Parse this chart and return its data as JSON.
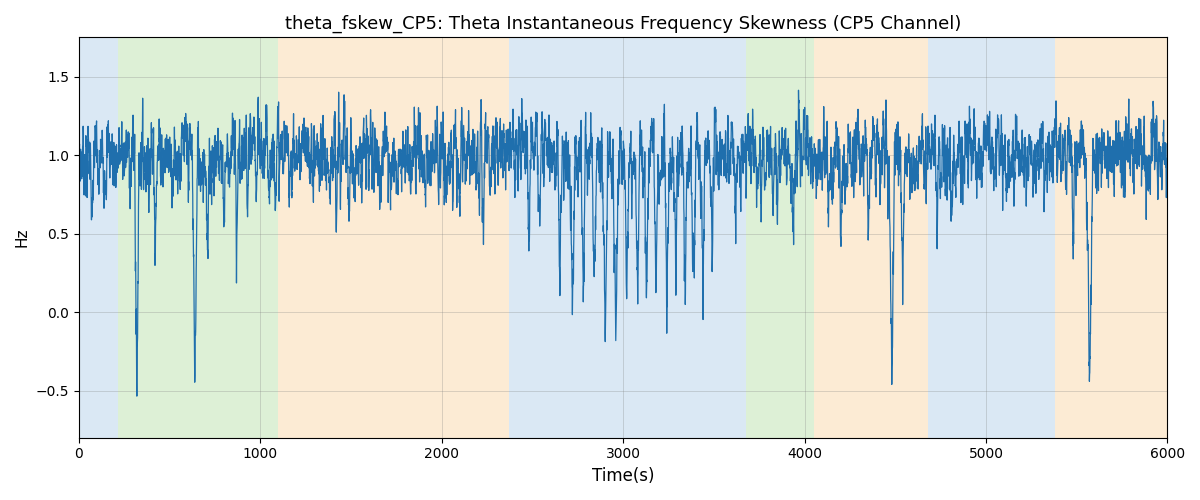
{
  "title": "theta_fskew_CP5: Theta Instantaneous Frequency Skewness (CP5 Channel)",
  "xlabel": "Time(s)",
  "ylabel": "Hz",
  "xlim": [
    0,
    6000
  ],
  "ylim": [
    -0.8,
    1.75
  ],
  "line_color": "#1f6fad",
  "line_width": 0.9,
  "yticks": [
    -0.5,
    0.0,
    0.5,
    1.0,
    1.5
  ],
  "xticks": [
    0,
    1000,
    2000,
    3000,
    4000,
    5000,
    6000
  ],
  "bands": [
    {
      "xmin": 0,
      "xmax": 215,
      "color": "#aecde8",
      "alpha": 0.45
    },
    {
      "xmin": 215,
      "xmax": 1100,
      "color": "#b5dea4",
      "alpha": 0.45
    },
    {
      "xmin": 1100,
      "xmax": 2370,
      "color": "#fad3a0",
      "alpha": 0.45
    },
    {
      "xmin": 2370,
      "xmax": 3530,
      "color": "#aecde8",
      "alpha": 0.45
    },
    {
      "xmin": 3530,
      "xmax": 3680,
      "color": "#aecde8",
      "alpha": 0.45
    },
    {
      "xmin": 3680,
      "xmax": 4050,
      "color": "#b5dea4",
      "alpha": 0.45
    },
    {
      "xmin": 4050,
      "xmax": 4680,
      "color": "#fad3a0",
      "alpha": 0.45
    },
    {
      "xmin": 4680,
      "xmax": 5380,
      "color": "#aecde8",
      "alpha": 0.45
    },
    {
      "xmin": 5380,
      "xmax": 6000,
      "color": "#fad3a0",
      "alpha": 0.45
    }
  ],
  "title_fontsize": 13,
  "figsize": [
    12.0,
    5.0
  ],
  "dpi": 100
}
